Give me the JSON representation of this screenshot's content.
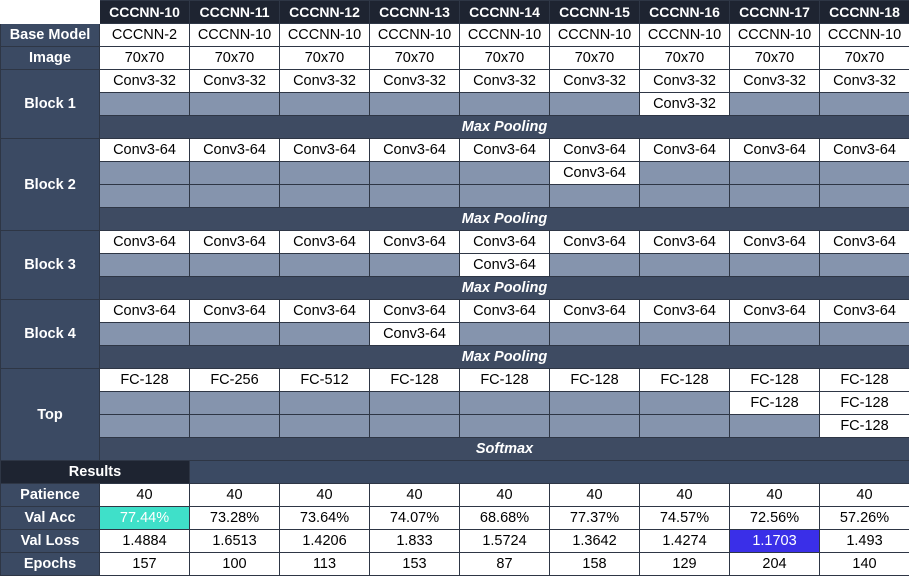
{
  "models": [
    "CCCNN-10",
    "CCCNN-11",
    "CCCNN-12",
    "CCCNN-13",
    "CCCNN-14",
    "CCCNN-15",
    "CCCNN-16",
    "CCCNN-17",
    "CCCNN-18"
  ],
  "labels": {
    "base_model": "Base Model",
    "image": "Image",
    "block1": "Block 1",
    "block2": "Block 2",
    "block3": "Block 3",
    "block4": "Block 4",
    "top": "Top",
    "results": "Results",
    "patience": "Patience",
    "val_acc": "Val Acc",
    "val_loss": "Val Loss",
    "epochs": "Epochs"
  },
  "base_model": [
    "CCCNN-2",
    "CCCNN-10",
    "CCCNN-10",
    "CCCNN-10",
    "CCCNN-10",
    "CCCNN-10",
    "CCCNN-10",
    "CCCNN-10",
    "CCCNN-10"
  ],
  "image": [
    "70x70",
    "70x70",
    "70x70",
    "70x70",
    "70x70",
    "70x70",
    "70x70",
    "70x70",
    "70x70"
  ],
  "block1": {
    "row1": [
      "Conv3-32",
      "Conv3-32",
      "Conv3-32",
      "Conv3-32",
      "Conv3-32",
      "Conv3-32",
      "Conv3-32",
      "Conv3-32",
      "Conv3-32"
    ],
    "row2": [
      "",
      "",
      "",
      "",
      "",
      "",
      "Conv3-32",
      "",
      ""
    ],
    "pool": "Max Pooling"
  },
  "block2": {
    "row1": [
      "Conv3-64",
      "Conv3-64",
      "Conv3-64",
      "Conv3-64",
      "Conv3-64",
      "Conv3-64",
      "Conv3-64",
      "Conv3-64",
      "Conv3-64"
    ],
    "row2": [
      "",
      "",
      "",
      "",
      "",
      "Conv3-64",
      "",
      "",
      ""
    ],
    "row3": [
      "",
      "",
      "",
      "",
      "",
      "",
      "",
      "",
      ""
    ],
    "pool": "Max Pooling"
  },
  "block3": {
    "row1": [
      "Conv3-64",
      "Conv3-64",
      "Conv3-64",
      "Conv3-64",
      "Conv3-64",
      "Conv3-64",
      "Conv3-64",
      "Conv3-64",
      "Conv3-64"
    ],
    "row2": [
      "",
      "",
      "",
      "",
      "Conv3-64",
      "",
      "",
      "",
      ""
    ],
    "pool": "Max Pooling"
  },
  "block4": {
    "row1": [
      "Conv3-64",
      "Conv3-64",
      "Conv3-64",
      "Conv3-64",
      "Conv3-64",
      "Conv3-64",
      "Conv3-64",
      "Conv3-64",
      "Conv3-64"
    ],
    "row2": [
      "",
      "",
      "",
      "Conv3-64",
      "",
      "",
      "",
      "",
      ""
    ],
    "pool": "Max Pooling"
  },
  "top": {
    "row1": [
      "FC-128",
      "FC-256",
      "FC-512",
      "FC-128",
      "FC-128",
      "FC-128",
      "FC-128",
      "FC-128",
      "FC-128"
    ],
    "row2": [
      "",
      "",
      "",
      "",
      "",
      "",
      "",
      "FC-128",
      "FC-128"
    ],
    "row3": [
      "",
      "",
      "",
      "",
      "",
      "",
      "",
      "",
      "FC-128"
    ],
    "softmax": "Softmax"
  },
  "patience": [
    "40",
    "40",
    "40",
    "40",
    "40",
    "40",
    "40",
    "40",
    "40"
  ],
  "val_acc": [
    "77.44%",
    "73.28%",
    "73.64%",
    "74.07%",
    "68.68%",
    "77.37%",
    "74.57%",
    "72.56%",
    "57.26%"
  ],
  "val_loss": [
    "1.4884",
    "1.6513",
    "1.4206",
    "1.833",
    "1.5724",
    "1.3642",
    "1.4274",
    "1.1703",
    "1.493"
  ],
  "epochs": [
    "157",
    "100",
    "113",
    "153",
    "87",
    "158",
    "129",
    "204",
    "140"
  ],
  "highlights": {
    "best_val_acc_color": "#3fe0c9",
    "best_val_loss_color": "#3a2fe8",
    "header_bg": "#1e2431",
    "label_bg": "#3b4a63",
    "empty_cell_bg": "#8594ad"
  }
}
